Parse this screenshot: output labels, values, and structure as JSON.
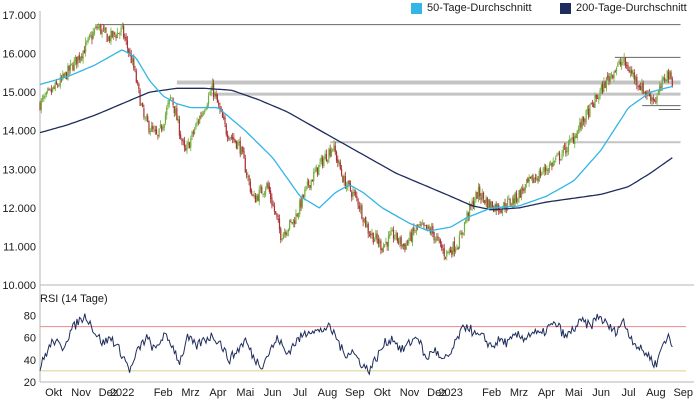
{
  "chart_data": [
    {
      "type": "candlestick",
      "title": "",
      "legend": [
        {
          "label": "50-Tage-Durchschnitt",
          "color": "#33b5e5"
        },
        {
          "label": "200-Tage-Durchschnitt",
          "color": "#1f2d5c"
        }
      ],
      "y_ticks": [
        "17.000",
        "16.000",
        "15.000",
        "14.000",
        "13.000",
        "12.000",
        "11.000",
        "10.000"
      ],
      "ylim": [
        10000,
        17000
      ],
      "x_range_months": [
        0,
        23.6
      ],
      "x_ticks": [
        {
          "label": "Okt",
          "m": 0.5
        },
        {
          "label": "Nov",
          "m": 1.5
        },
        {
          "label": "Dez",
          "m": 2.5
        },
        {
          "label": "2022",
          "m": 3.0
        },
        {
          "label": "Feb",
          "m": 4.5
        },
        {
          "label": "Mrz",
          "m": 5.5
        },
        {
          "label": "Apr",
          "m": 6.5
        },
        {
          "label": "Mai",
          "m": 7.5
        },
        {
          "label": "Jun",
          "m": 8.5
        },
        {
          "label": "Jul",
          "m": 9.5
        },
        {
          "label": "Aug",
          "m": 10.5
        },
        {
          "label": "Sep",
          "m": 11.5
        },
        {
          "label": "Okt",
          "m": 12.5
        },
        {
          "label": "Nov",
          "m": 13.5
        },
        {
          "label": "Dez",
          "m": 14.5
        },
        {
          "label": "2023",
          "m": 15.0
        },
        {
          "label": "Feb",
          "m": 16.5
        },
        {
          "label": "Mrz",
          "m": 17.5
        },
        {
          "label": "Apr",
          "m": 18.5
        },
        {
          "label": "Mai",
          "m": 19.5
        },
        {
          "label": "Jun",
          "m": 20.5
        },
        {
          "label": "Jul",
          "m": 21.5
        },
        {
          "label": "Aug",
          "m": 22.5
        },
        {
          "label": "Sep",
          "m": 23.5
        }
      ],
      "price_anchors": [
        [
          0,
          14700
        ],
        [
          0.8,
          15300
        ],
        [
          1.6,
          16100
        ],
        [
          2.1,
          16700
        ],
        [
          2.5,
          16400
        ],
        [
          3.0,
          16600
        ],
        [
          3.4,
          15700
        ],
        [
          3.8,
          14300
        ],
        [
          4.3,
          13800
        ],
        [
          4.8,
          14900
        ],
        [
          5.3,
          13400
        ],
        [
          5.8,
          14300
        ],
        [
          6.3,
          15100
        ],
        [
          6.8,
          14000
        ],
        [
          7.3,
          13600
        ],
        [
          7.8,
          12200
        ],
        [
          8.3,
          12600
        ],
        [
          8.8,
          11300
        ],
        [
          9.3,
          11700
        ],
        [
          9.8,
          12600
        ],
        [
          10.3,
          13200
        ],
        [
          10.7,
          13600
        ],
        [
          11.1,
          12700
        ],
        [
          11.6,
          12200
        ],
        [
          12.0,
          11400
        ],
        [
          12.5,
          11000
        ],
        [
          12.9,
          11300
        ],
        [
          13.3,
          11000
        ],
        [
          13.8,
          11500
        ],
        [
          14.3,
          11400
        ],
        [
          14.8,
          10800
        ],
        [
          15.3,
          11100
        ],
        [
          15.6,
          11800
        ],
        [
          16.0,
          12400
        ],
        [
          16.4,
          12100
        ],
        [
          16.8,
          12000
        ],
        [
          17.3,
          12200
        ],
        [
          17.8,
          12600
        ],
        [
          18.3,
          12900
        ],
        [
          18.8,
          13200
        ],
        [
          19.3,
          13600
        ],
        [
          19.8,
          14200
        ],
        [
          20.3,
          14800
        ],
        [
          20.7,
          15300
        ],
        [
          21.0,
          15600
        ],
        [
          21.3,
          15800
        ],
        [
          21.7,
          15400
        ],
        [
          22.1,
          15000
        ],
        [
          22.5,
          14800
        ],
        [
          22.9,
          15500
        ],
        [
          23.1,
          15300
        ]
      ],
      "ma50_anchors": [
        [
          0,
          15200
        ],
        [
          1.0,
          15400
        ],
        [
          2.0,
          15700
        ],
        [
          3.0,
          16100
        ],
        [
          3.5,
          15900
        ],
        [
          4.0,
          15300
        ],
        [
          4.5,
          14900
        ],
        [
          5.0,
          14700
        ],
        [
          5.5,
          14600
        ],
        [
          6.5,
          14600
        ],
        [
          7.5,
          14000
        ],
        [
          8.5,
          13300
        ],
        [
          9.5,
          12300
        ],
        [
          10.2,
          12000
        ],
        [
          10.8,
          12400
        ],
        [
          11.3,
          12600
        ],
        [
          11.8,
          12400
        ],
        [
          12.5,
          12000
        ],
        [
          13.5,
          11600
        ],
        [
          14.2,
          11400
        ],
        [
          15.0,
          11500
        ],
        [
          15.6,
          11750
        ],
        [
          16.5,
          12000
        ],
        [
          17.5,
          12050
        ],
        [
          18.5,
          12300
        ],
        [
          19.5,
          12700
        ],
        [
          20.5,
          13500
        ],
        [
          21.5,
          14600
        ],
        [
          22.3,
          15000
        ],
        [
          23.1,
          15150
        ]
      ],
      "ma200_anchors": [
        [
          0,
          13950
        ],
        [
          1.0,
          14150
        ],
        [
          2.0,
          14400
        ],
        [
          3.0,
          14700
        ],
        [
          4.0,
          15000
        ],
        [
          5.0,
          15100
        ],
        [
          6.0,
          15100
        ],
        [
          7.0,
          15050
        ],
        [
          8.0,
          14800
        ],
        [
          9.0,
          14500
        ],
        [
          10.0,
          14100
        ],
        [
          11.0,
          13700
        ],
        [
          12.0,
          13300
        ],
        [
          13.0,
          12900
        ],
        [
          14.0,
          12600
        ],
        [
          15.0,
          12300
        ],
        [
          15.8,
          12050
        ],
        [
          16.5,
          11950
        ],
        [
          17.5,
          12000
        ],
        [
          18.5,
          12150
        ],
        [
          19.5,
          12250
        ],
        [
          20.5,
          12350
        ],
        [
          21.5,
          12550
        ],
        [
          22.3,
          12900
        ],
        [
          23.1,
          13300
        ]
      ],
      "reference_lines": [
        {
          "value": 16750,
          "from_m": 2.1,
          "to_m": 23.4,
          "color": "#666666",
          "width": 1
        },
        {
          "value": 15900,
          "from_m": 21.0,
          "to_m": 23.4,
          "color": "#666666",
          "width": 1
        },
        {
          "value": 15250,
          "from_m": 5.0,
          "to_m": 23.4,
          "color": "#c4c4c4",
          "width": 4
        },
        {
          "value": 14950,
          "from_m": 6.2,
          "to_m": 23.4,
          "color": "#c4c4c4",
          "width": 3
        },
        {
          "value": 14650,
          "from_m": 22.0,
          "to_m": 23.4,
          "color": "#666666",
          "width": 1
        },
        {
          "value": 14550,
          "from_m": 22.6,
          "to_m": 23.4,
          "color": "#666666",
          "width": 1
        },
        {
          "value": 13700,
          "from_m": 10.6,
          "to_m": 23.4,
          "color": "#c4c4c4",
          "width": 2
        }
      ]
    },
    {
      "type": "line",
      "title": "RSI (14 Tage)",
      "y_ticks": [
        "80",
        "60",
        "40",
        "20"
      ],
      "ylim": [
        20,
        85
      ],
      "overbought": 70,
      "oversold": 30,
      "overbought_color": "#e88a8a",
      "oversold_color": "#d9d28c",
      "rsi_anchors": [
        [
          0,
          32
        ],
        [
          0.2,
          45
        ],
        [
          0.5,
          58
        ],
        [
          0.8,
          50
        ],
        [
          1.1,
          65
        ],
        [
          1.4,
          75
        ],
        [
          1.7,
          80
        ],
        [
          2.0,
          65
        ],
        [
          2.3,
          55
        ],
        [
          2.6,
          60
        ],
        [
          3.0,
          45
        ],
        [
          3.3,
          30
        ],
        [
          3.6,
          50
        ],
        [
          3.9,
          60
        ],
        [
          4.2,
          48
        ],
        [
          4.5,
          62
        ],
        [
          4.8,
          55
        ],
        [
          5.1,
          38
        ],
        [
          5.4,
          60
        ],
        [
          5.7,
          52
        ],
        [
          6.0,
          58
        ],
        [
          6.3,
          62
        ],
        [
          6.6,
          55
        ],
        [
          6.9,
          40
        ],
        [
          7.2,
          48
        ],
        [
          7.5,
          58
        ],
        [
          7.8,
          42
        ],
        [
          8.1,
          35
        ],
        [
          8.4,
          48
        ],
        [
          8.7,
          60
        ],
        [
          9.0,
          45
        ],
        [
          9.3,
          55
        ],
        [
          9.6,
          62
        ],
        [
          9.9,
          68
        ],
        [
          10.2,
          65
        ],
        [
          10.5,
          70
        ],
        [
          10.8,
          62
        ],
        [
          11.1,
          45
        ],
        [
          11.4,
          48
        ],
        [
          11.7,
          38
        ],
        [
          12.0,
          30
        ],
        [
          12.3,
          42
        ],
        [
          12.6,
          55
        ],
        [
          12.9,
          60
        ],
        [
          13.2,
          48
        ],
        [
          13.5,
          55
        ],
        [
          13.8,
          62
        ],
        [
          14.1,
          40
        ],
        [
          14.4,
          50
        ],
        [
          14.7,
          38
        ],
        [
          15.0,
          45
        ],
        [
          15.3,
          62
        ],
        [
          15.6,
          72
        ],
        [
          15.9,
          62
        ],
        [
          16.2,
          60
        ],
        [
          16.5,
          52
        ],
        [
          16.8,
          58
        ],
        [
          17.1,
          55
        ],
        [
          17.4,
          62
        ],
        [
          17.7,
          60
        ],
        [
          18.0,
          65
        ],
        [
          18.3,
          62
        ],
        [
          18.6,
          70
        ],
        [
          18.9,
          72
        ],
        [
          19.2,
          60
        ],
        [
          19.5,
          68
        ],
        [
          19.8,
          75
        ],
        [
          20.1,
          70
        ],
        [
          20.4,
          80
        ],
        [
          20.7,
          72
        ],
        [
          21.0,
          65
        ],
        [
          21.3,
          75
        ],
        [
          21.6,
          60
        ],
        [
          21.9,
          50
        ],
        [
          22.2,
          45
        ],
        [
          22.5,
          35
        ],
        [
          22.8,
          58
        ],
        [
          23.0,
          60
        ],
        [
          23.1,
          50
        ]
      ]
    }
  ]
}
